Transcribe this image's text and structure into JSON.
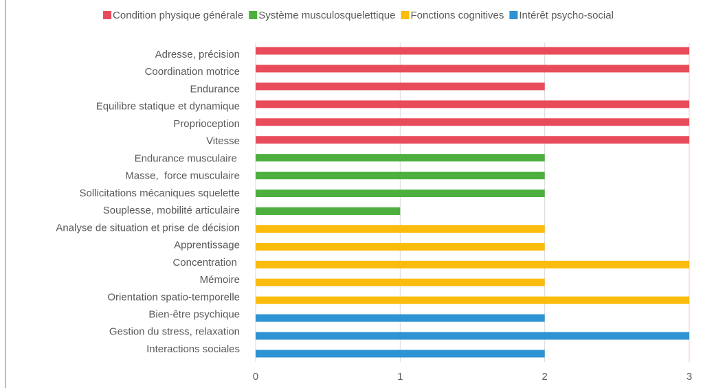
{
  "chart_data": {
    "type": "bar",
    "orientation": "horizontal",
    "categories": [
      "Adresse, précision",
      "Coordination motrice",
      "Endurance",
      "Equilibre statique et dynamique",
      "Proprioception",
      "Vitesse",
      "Endurance musculaire ",
      "Masse,  force musculaire",
      "Sollicitations mécaniques squelette",
      "Souplesse, mobilité articulaire",
      "Analyse de situation et prise de décision",
      "Apprentissage",
      "Concentration ",
      "Mémoire",
      "Orientation spatio-temporelle",
      "Bien-être psychique",
      "Gestion du stress, relaxation",
      "Interactions sociales"
    ],
    "series": [
      {
        "name": "Condition physique générale",
        "color": "#e84c5a",
        "values": [
          3,
          3,
          2,
          3,
          3,
          3,
          null,
          null,
          null,
          null,
          null,
          null,
          null,
          null,
          null,
          null,
          null,
          null
        ]
      },
      {
        "name": "Système musculosquelettique",
        "color": "#4caf3e",
        "values": [
          null,
          null,
          null,
          null,
          null,
          null,
          2,
          2,
          2,
          1,
          null,
          null,
          null,
          null,
          null,
          null,
          null,
          null
        ]
      },
      {
        "name": "Fonctions cognitives",
        "color": "#fbbc0e",
        "values": [
          null,
          null,
          null,
          null,
          null,
          null,
          null,
          null,
          null,
          null,
          2,
          2,
          3,
          2,
          3,
          null,
          null,
          null
        ]
      },
      {
        "name": "Intérêt psycho-social",
        "color": "#2e93d3",
        "values": [
          null,
          null,
          null,
          null,
          null,
          null,
          null,
          null,
          null,
          null,
          null,
          null,
          null,
          null,
          null,
          2,
          3,
          2
        ]
      }
    ],
    "xlim": [
      0,
      3
    ],
    "xticks": [
      0,
      1,
      2,
      3
    ],
    "grid": true,
    "legend": "top"
  }
}
